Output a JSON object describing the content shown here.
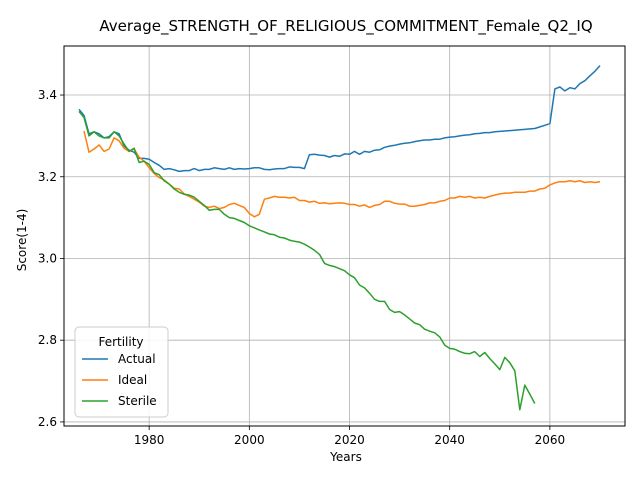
{
  "chart_data": {
    "type": "line",
    "title": "Average_STRENGTH_OF_RELIGIOUS_COMMITMENT_Female_Q2_IQ",
    "xlabel": "Years",
    "ylabel": "Score(1-4)",
    "xlim": [
      1963,
      2075
    ],
    "ylim": [
      2.59,
      3.52
    ],
    "xticks": [
      1980,
      2000,
      2020,
      2040,
      2060
    ],
    "yticks": [
      2.6,
      2.8,
      3.0,
      3.2,
      3.4
    ],
    "xtick_labels": [
      "1980",
      "2000",
      "2020",
      "2040",
      "2060"
    ],
    "ytick_labels": [
      "2.6",
      "2.8",
      "3.0",
      "3.2",
      "3.4"
    ],
    "grid": true,
    "legend": {
      "title": "Fertility",
      "position": "lower-left"
    },
    "series": [
      {
        "name": "Actual",
        "color": "#1f77b4",
        "x": [
          1966,
          1967,
          1968,
          1969,
          1970,
          1971,
          1972,
          1973,
          1974,
          1975,
          1976,
          1977,
          1978,
          1979,
          1980,
          1981,
          1982,
          1983,
          1984,
          1985,
          1986,
          1987,
          1988,
          1989,
          1990,
          1991,
          1992,
          1993,
          1994,
          1995,
          1996,
          1997,
          1998,
          1999,
          2000,
          2001,
          2002,
          2003,
          2004,
          2005,
          2006,
          2007,
          2008,
          2009,
          2010,
          2011,
          2012,
          2013,
          2014,
          2015,
          2016,
          2017,
          2018,
          2019,
          2020,
          2021,
          2022,
          2023,
          2024,
          2025,
          2026,
          2027,
          2028,
          2029,
          2030,
          2031,
          2032,
          2033,
          2034,
          2035,
          2036,
          2037,
          2038,
          2039,
          2040,
          2041,
          2042,
          2043,
          2044,
          2045,
          2046,
          2047,
          2048,
          2049,
          2050,
          2051,
          2052,
          2053,
          2054,
          2055,
          2056,
          2057,
          2058,
          2059,
          2060,
          2061,
          2062,
          2063,
          2064,
          2065,
          2066,
          2067,
          2068,
          2069,
          2070
        ],
        "y": [
          3.365,
          3.35,
          3.305,
          3.31,
          3.305,
          3.295,
          3.298,
          3.31,
          3.305,
          3.275,
          3.265,
          3.26,
          3.245,
          3.245,
          3.243,
          3.235,
          3.228,
          3.218,
          3.22,
          3.217,
          3.213,
          3.215,
          3.215,
          3.22,
          3.215,
          3.218,
          3.218,
          3.222,
          3.22,
          3.218,
          3.222,
          3.218,
          3.22,
          3.219,
          3.22,
          3.222,
          3.222,
          3.218,
          3.217,
          3.219,
          3.22,
          3.22,
          3.224,
          3.223,
          3.223,
          3.22,
          3.254,
          3.255,
          3.253,
          3.252,
          3.248,
          3.252,
          3.25,
          3.256,
          3.255,
          3.262,
          3.255,
          3.262,
          3.26,
          3.265,
          3.266,
          3.272,
          3.275,
          3.277,
          3.28,
          3.282,
          3.283,
          3.286,
          3.288,
          3.29,
          3.29,
          3.292,
          3.292,
          3.295,
          3.297,
          3.298,
          3.3,
          3.302,
          3.303,
          3.305,
          3.306,
          3.308,
          3.308,
          3.31,
          3.311,
          3.312,
          3.313,
          3.314,
          3.315,
          3.316,
          3.317,
          3.318,
          3.322,
          3.326,
          3.33,
          3.415,
          3.42,
          3.41,
          3.418,
          3.415,
          3.428,
          3.435,
          3.447,
          3.458,
          3.472
        ]
      },
      {
        "name": "Ideal",
        "color": "#ff7f0e",
        "x": [
          1967,
          1968,
          1969,
          1970,
          1971,
          1972,
          1973,
          1974,
          1975,
          1976,
          1977,
          1978,
          1979,
          1980,
          1981,
          1982,
          1983,
          1984,
          1985,
          1986,
          1987,
          1988,
          1989,
          1990,
          1991,
          1992,
          1993,
          1994,
          1995,
          1996,
          1997,
          1998,
          1999,
          2000,
          2001,
          2002,
          2003,
          2004,
          2005,
          2006,
          2007,
          2008,
          2009,
          2010,
          2011,
          2012,
          2013,
          2014,
          2015,
          2016,
          2017,
          2018,
          2019,
          2020,
          2021,
          2022,
          2023,
          2024,
          2025,
          2026,
          2027,
          2028,
          2029,
          2030,
          2031,
          2032,
          2033,
          2034,
          2035,
          2036,
          2037,
          2038,
          2039,
          2040,
          2041,
          2042,
          2043,
          2044,
          2045,
          2046,
          2047,
          2048,
          2049,
          2050,
          2051,
          2052,
          2053,
          2054,
          2055,
          2056,
          2057,
          2058,
          2059,
          2060,
          2061,
          2062,
          2063,
          2064,
          2065,
          2066,
          2067,
          2068,
          2069,
          2070
        ],
        "y": [
          3.312,
          3.26,
          3.268,
          3.278,
          3.262,
          3.268,
          3.295,
          3.288,
          3.27,
          3.262,
          3.268,
          3.248,
          3.238,
          3.222,
          3.208,
          3.198,
          3.192,
          3.182,
          3.172,
          3.17,
          3.158,
          3.152,
          3.145,
          3.138,
          3.128,
          3.125,
          3.128,
          3.122,
          3.125,
          3.132,
          3.135,
          3.13,
          3.125,
          3.11,
          3.102,
          3.108,
          3.145,
          3.148,
          3.152,
          3.15,
          3.15,
          3.148,
          3.15,
          3.142,
          3.142,
          3.138,
          3.14,
          3.135,
          3.136,
          3.134,
          3.135,
          3.136,
          3.135,
          3.132,
          3.132,
          3.128,
          3.131,
          3.125,
          3.13,
          3.132,
          3.14,
          3.14,
          3.135,
          3.133,
          3.133,
          3.128,
          3.128,
          3.13,
          3.132,
          3.136,
          3.136,
          3.14,
          3.142,
          3.148,
          3.148,
          3.152,
          3.15,
          3.152,
          3.148,
          3.15,
          3.148,
          3.152,
          3.155,
          3.158,
          3.16,
          3.16,
          3.162,
          3.162,
          3.162,
          3.165,
          3.165,
          3.17,
          3.172,
          3.18,
          3.185,
          3.188,
          3.188,
          3.19,
          3.188,
          3.19,
          3.186,
          3.188,
          3.186,
          3.188
        ]
      },
      {
        "name": "Sterile",
        "color": "#2ca02c",
        "x": [
          1966,
          1967,
          1968,
          1969,
          1970,
          1971,
          1972,
          1973,
          1974,
          1975,
          1976,
          1977,
          1978,
          1979,
          1980,
          1981,
          1982,
          1983,
          1984,
          1985,
          1986,
          1987,
          1988,
          1989,
          1990,
          1991,
          1992,
          1993,
          1994,
          1995,
          1996,
          1997,
          1998,
          1999,
          2000,
          2001,
          2002,
          2003,
          2004,
          2005,
          2006,
          2007,
          2008,
          2009,
          2010,
          2011,
          2012,
          2013,
          2014,
          2015,
          2016,
          2017,
          2018,
          2019,
          2020,
          2021,
          2022,
          2023,
          2024,
          2025,
          2026,
          2027,
          2028,
          2029,
          2030,
          2031,
          2032,
          2033,
          2034,
          2035,
          2036,
          2037,
          2038,
          2039,
          2040,
          2041,
          2042,
          2043,
          2044,
          2045,
          2046,
          2047,
          2048,
          2049,
          2050,
          2051,
          2052,
          2053,
          2054,
          2055,
          2056,
          2057
        ],
        "y": [
          3.36,
          3.345,
          3.3,
          3.31,
          3.3,
          3.295,
          3.295,
          3.31,
          3.3,
          3.28,
          3.262,
          3.27,
          3.235,
          3.238,
          3.23,
          3.21,
          3.205,
          3.19,
          3.182,
          3.17,
          3.162,
          3.157,
          3.155,
          3.15,
          3.14,
          3.13,
          3.118,
          3.12,
          3.12,
          3.108,
          3.1,
          3.098,
          3.093,
          3.088,
          3.08,
          3.075,
          3.07,
          3.065,
          3.06,
          3.058,
          3.052,
          3.05,
          3.045,
          3.042,
          3.04,
          3.035,
          3.028,
          3.02,
          3.01,
          2.988,
          2.983,
          2.98,
          2.975,
          2.97,
          2.96,
          2.953,
          2.935,
          2.928,
          2.915,
          2.9,
          2.895,
          2.895,
          2.875,
          2.868,
          2.87,
          2.862,
          2.852,
          2.842,
          2.838,
          2.827,
          2.822,
          2.818,
          2.808,
          2.788,
          2.78,
          2.778,
          2.772,
          2.768,
          2.767,
          2.772,
          2.76,
          2.77,
          2.755,
          2.742,
          2.728,
          2.758,
          2.745,
          2.725,
          2.63,
          2.69,
          2.668,
          2.645
        ]
      }
    ]
  }
}
